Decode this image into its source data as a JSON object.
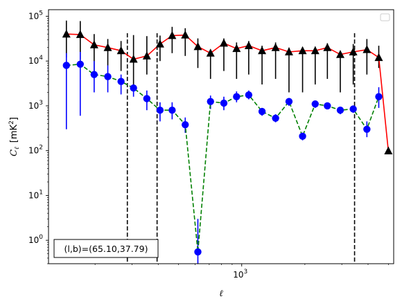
{
  "chart_data": {
    "type": "scatter",
    "title": "",
    "x_scale": "log",
    "y_scale": "log",
    "xlim": [
      120,
      5300
    ],
    "ylim": [
      0.3,
      140000
    ],
    "grid": false,
    "legend": "top-right",
    "xlabel": "ℓ",
    "ylabel": {
      "symbol": "C",
      "subscript": "ℓ",
      "unit_open": "[mK",
      "unit_sup": "2",
      "unit_close": "]"
    },
    "x_ticks": [
      {
        "value": 1000,
        "base": "10",
        "exp": "3"
      }
    ],
    "y_ticks": [
      {
        "value": 1,
        "base": "10",
        "exp": "0"
      },
      {
        "value": 10,
        "base": "10",
        "exp": "1"
      },
      {
        "value": 100,
        "base": "10",
        "exp": "2"
      },
      {
        "value": 1000,
        "base": "10",
        "exp": "3"
      },
      {
        "value": 10000,
        "base": "10",
        "exp": "4"
      },
      {
        "value": 100000,
        "base": "10",
        "exp": "5"
      }
    ],
    "vlines": [
      285,
      395,
      3450
    ],
    "annotation": "(l,b)=(65.10,37.79)",
    "series": [
      {
        "marker": "triangle",
        "line_color": "#ff0000",
        "line_style": "solid",
        "marker_color": "#000000",
        "errorbar_color": "#000000",
        "x": [
          146,
          170,
          198,
          230,
          266,
          305,
          353,
          408,
          466,
          538,
          618,
          710,
          822,
          945,
          1080,
          1250,
          1450,
          1680,
          1950,
          2240,
          2560,
          2950,
          3400,
          3950,
          4500,
          5000
        ],
        "y": [
          40000,
          39000,
          23000,
          20000,
          17000,
          11000,
          13000,
          24000,
          37000,
          38000,
          21000,
          15000,
          25000,
          19000,
          22000,
          17000,
          20000,
          16000,
          17000,
          17000,
          20000,
          14000,
          16000,
          18000,
          12000,
          99
        ],
        "err_low": [
          12000,
          11000,
          6000,
          8000,
          6000,
          3000,
          5000,
          10000,
          15000,
          13000,
          7000,
          4000,
          6000,
          4000,
          5000,
          3000,
          4000,
          2000,
          2000,
          3000,
          4000,
          2000,
          3000,
          5000,
          7000,
          0
        ],
        "err_high": [
          80000,
          78000,
          40000,
          31000,
          28000,
          38000,
          36000,
          37000,
          58000,
          54000,
          32000,
          18000,
          32000,
          26000,
          28000,
          22000,
          26000,
          20000,
          20000,
          21000,
          25000,
          17000,
          24000,
          31000,
          22000,
          0
        ]
      },
      {
        "marker": "circle",
        "line_color": "#008000",
        "line_style": "dashed",
        "marker_color": "#0000ff",
        "errorbar_color": "#0000ff",
        "x": [
          146,
          170,
          198,
          230,
          266,
          305,
          353,
          408,
          466,
          538,
          618,
          710,
          822,
          945,
          1080,
          1250,
          1450,
          1680,
          1950,
          2240,
          2560,
          2950,
          3400,
          3950,
          4500
        ],
        "y": [
          8000,
          8500,
          5000,
          4500,
          3500,
          2500,
          1450,
          800,
          800,
          380,
          0.55,
          1250,
          1150,
          1600,
          1750,
          750,
          530,
          1250,
          210,
          1100,
          1000,
          800,
          850,
          300,
          1600
        ],
        "err_low": [
          300,
          600,
          2000,
          2000,
          1800,
          1600,
          800,
          450,
          500,
          250,
          0.1,
          850,
          800,
          1200,
          1400,
          600,
          430,
          1000,
          170,
          900,
          850,
          650,
          700,
          200,
          900
        ],
        "err_high": [
          15000,
          16000,
          10000,
          8000,
          5000,
          3000,
          2200,
          1200,
          1200,
          550,
          3,
          1700,
          1600,
          2100,
          2200,
          900,
          650,
          1500,
          250,
          1300,
          1150,
          950,
          1000,
          450,
          2600
        ]
      }
    ]
  }
}
